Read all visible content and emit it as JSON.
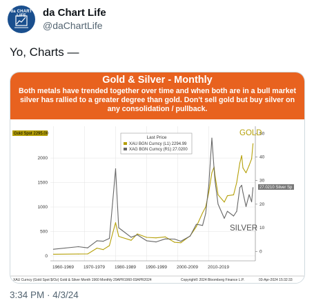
{
  "author": {
    "name": "da Chart Life",
    "handle": "@daChartLife",
    "avatar_text": "da CHART LIFE",
    "avatar_color": "#1a4f8e"
  },
  "tweet": {
    "text": "Yo, Charts —",
    "timestamp": "3:34 PM · 4/3/24"
  },
  "banner": {
    "title": "Gold & Silver - Monthly",
    "subtitle": "Both metals have trended together over time and when both are in a bull market silver has rallied to a greater degree than gold. Don't sell gold but buy silver on any consolidation / pullback.",
    "color": "#e8621f"
  },
  "chart_data": {
    "type": "line",
    "x": [
      "1960",
      "1968",
      "1971",
      "1974",
      "1976",
      "1978",
      "1979",
      "1980",
      "1981",
      "1982",
      "1985",
      "1987",
      "1990",
      "1993",
      "1996",
      "1999",
      "2001",
      "2004",
      "2006",
      "2008",
      "2009",
      "2010",
      "2011",
      "2011.7",
      "2012",
      "2013",
      "2015",
      "2016",
      "2018",
      "2019",
      "2020",
      "2020.6",
      "2021",
      "2022",
      "2023",
      "2023.8",
      "2024.25"
    ],
    "series": [
      {
        "name": "XAU BGN Curncy",
        "axis": "L1",
        "last": "2294.99",
        "color": "#b5a008",
        "values": [
          35,
          40,
          41,
          160,
          130,
          210,
          450,
          680,
          400,
          380,
          320,
          450,
          380,
          370,
          390,
          280,
          270,
          410,
          600,
          880,
          1000,
          1300,
          1700,
          1820,
          1650,
          1250,
          1100,
          1230,
          1250,
          1500,
          1900,
          2050,
          1800,
          1700,
          1850,
          1985,
          2294.99
        ]
      },
      {
        "name": "XAG BGN Curncy",
        "axis": "R1",
        "last": "27.0200",
        "color": "#666666",
        "values": [
          0.9,
          2.0,
          1.5,
          4.5,
          4.3,
          5.5,
          20,
          35,
          10,
          9,
          6,
          7,
          4.5,
          4,
          5.3,
          5.2,
          4.3,
          6.5,
          11.5,
          11,
          16,
          28,
          48,
          35,
          30,
          20,
          14,
          17,
          15,
          17,
          27,
          28,
          25,
          19,
          24,
          21,
          27.02
        ]
      }
    ],
    "x_ticks": [
      "1960-1969",
      "1970-1979",
      "1980-1989",
      "1990-1999",
      "2000-2009",
      "2010-2019"
    ],
    "y_left_ticks": [
      0,
      500,
      1000,
      1500,
      2000
    ],
    "y_right_ticks": [
      0,
      10,
      20,
      30,
      40,
      50
    ],
    "ylim_left": [
      -100,
      2650
    ],
    "ylim_right": [
      -4,
      53
    ],
    "xlim": [
      1959,
      2025
    ],
    "grid": true,
    "legend": {
      "title": "Last Price",
      "placement": "top-center",
      "items": [
        "XAU BGN Curncy (L1) 2294.99",
        "XAG BGN Curncy (R1) 27.0200"
      ]
    },
    "left_tag": "Gold Spot 2295.00",
    "right_tag": "27.0210 Silver Sp",
    "annotations": [
      "GOLD",
      "SILVER"
    ],
    "footer_left": "XAU Curncy (Gold Spot $/Oz) Gold & Silver Month 1960  Monthly 29APR1960-03APR2024",
    "footer_right_copy": "Copyright© 2024 Bloomberg Finance L.P.",
    "footer_right_date": "03-Apr-2024 15:32:33"
  }
}
